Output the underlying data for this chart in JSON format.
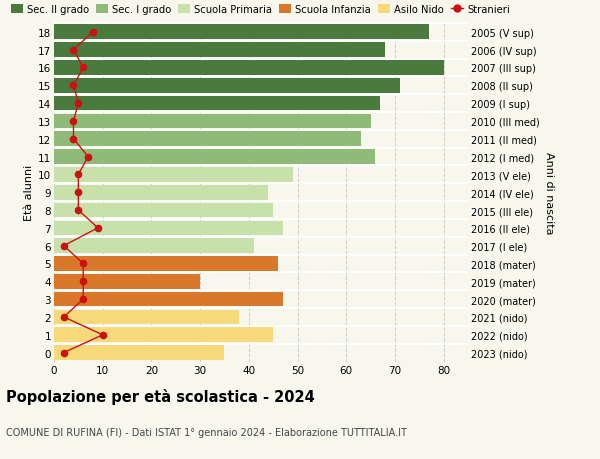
{
  "ages": [
    18,
    17,
    16,
    15,
    14,
    13,
    12,
    11,
    10,
    9,
    8,
    7,
    6,
    5,
    4,
    3,
    2,
    1,
    0
  ],
  "anni_nascita": [
    "2005 (V sup)",
    "2006 (IV sup)",
    "2007 (III sup)",
    "2008 (II sup)",
    "2009 (I sup)",
    "2010 (III med)",
    "2011 (II med)",
    "2012 (I med)",
    "2013 (V ele)",
    "2014 (IV ele)",
    "2015 (III ele)",
    "2016 (II ele)",
    "2017 (I ele)",
    "2018 (mater)",
    "2019 (mater)",
    "2020 (mater)",
    "2021 (nido)",
    "2022 (nido)",
    "2023 (nido)"
  ],
  "bar_values": [
    77,
    68,
    80,
    71,
    67,
    65,
    63,
    66,
    49,
    44,
    45,
    47,
    41,
    46,
    30,
    47,
    38,
    45,
    35
  ],
  "bar_colors": [
    "#4a7a3d",
    "#4a7a3d",
    "#4a7a3d",
    "#4a7a3d",
    "#4a7a3d",
    "#8fba78",
    "#8fba78",
    "#8fba78",
    "#c8e0aa",
    "#c8e0aa",
    "#c8e0aa",
    "#c8e0aa",
    "#c8e0aa",
    "#d9782a",
    "#d9782a",
    "#d9782a",
    "#f5d97a",
    "#f5d97a",
    "#f5d97a"
  ],
  "stranieri_values": [
    8,
    4,
    6,
    4,
    5,
    4,
    4,
    7,
    5,
    5,
    5,
    9,
    2,
    6,
    6,
    6,
    2,
    10,
    2
  ],
  "legend_labels": [
    "Sec. II grado",
    "Sec. I grado",
    "Scuola Primaria",
    "Scuola Infanzia",
    "Asilo Nido",
    "Stranieri"
  ],
  "legend_colors": [
    "#4a7a3d",
    "#8fba78",
    "#c8e0aa",
    "#d9782a",
    "#f5d97a",
    "#cc1111"
  ],
  "title": "Popolazione per età scolastica - 2024",
  "subtitle": "COMUNE DI RUFINA (FI) - Dati ISTAT 1° gennaio 2024 - Elaborazione TUTTITALIA.IT",
  "ylabel_left": "Età alunni",
  "ylabel_right": "Anni di nascita",
  "xlim": [
    0,
    85
  ],
  "xticks": [
    0,
    10,
    20,
    30,
    40,
    50,
    60,
    70,
    80
  ],
  "bar_height": 0.82,
  "stranieri_color": "#cc1111",
  "grid_color": "#cccccc",
  "background_color": "#f7f7ee",
  "white_sep": "white"
}
